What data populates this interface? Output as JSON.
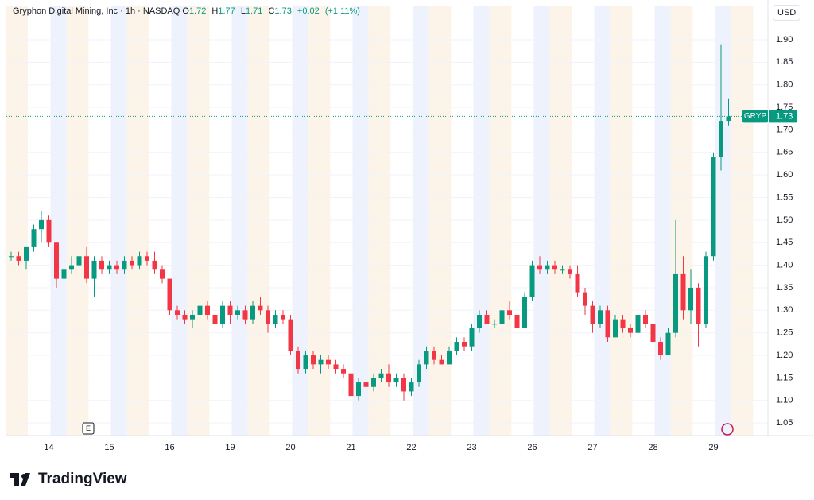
{
  "brand": "TradingView",
  "chart_data": {
    "type": "candlestick",
    "title": "Gryphon Digital Mining, Inc · 1h · NASDAQ",
    "header": {
      "open_label": "O",
      "open": 1.72,
      "high_label": "H",
      "high": 1.77,
      "low_label": "L",
      "low": 1.71,
      "close_label": "C",
      "close": 1.73,
      "change": {
        "value": 0.02,
        "label": "+0.02"
      },
      "change_pct": {
        "value": 1.11,
        "label": "(+1.11%)"
      }
    },
    "currency": "USD",
    "symbol": "GRYP",
    "last_price": 1.73,
    "earnings_marker": "E",
    "up_color": "#089981",
    "down_color": "#f23645",
    "grid": true,
    "ylim": [
      1.022,
      1.974
    ],
    "yticks": [
      1.05,
      {
        "value": 1.1,
        "label": "1.10"
      },
      1.15,
      {
        "value": 1.2,
        "label": "1.20"
      },
      1.25,
      {
        "value": 1.3,
        "label": "1.30"
      },
      1.35,
      {
        "value": 1.4,
        "label": "1.40"
      },
      1.45,
      {
        "value": 1.5,
        "label": "1.50"
      },
      1.55,
      {
        "value": 1.6,
        "label": "1.60"
      },
      1.65,
      {
        "value": 1.7,
        "label": "1.70"
      },
      1.75,
      {
        "value": 1.8,
        "label": "1.80"
      },
      1.85,
      {
        "value": 1.9,
        "label": "1.90"
      }
    ],
    "categories": [
      null,
      null,
      null,
      null,
      null,
      "14",
      null,
      null,
      null,
      null,
      null,
      null,
      null,
      "15",
      null,
      null,
      null,
      null,
      null,
      null,
      null,
      "16",
      null,
      null,
      null,
      null,
      null,
      null,
      null,
      "19",
      null,
      null,
      null,
      null,
      null,
      null,
      null,
      "20",
      null,
      null,
      null,
      null,
      null,
      null,
      null,
      "21",
      null,
      null,
      null,
      null,
      null,
      null,
      null,
      "22",
      null,
      null,
      null,
      null,
      null,
      null,
      null,
      "23",
      null,
      null,
      null,
      null,
      null,
      null,
      null,
      "26",
      null,
      null,
      null,
      null,
      null,
      null,
      null,
      "27",
      null,
      null,
      null,
      null,
      null,
      null,
      null,
      "28",
      null,
      null,
      null,
      null,
      null,
      null,
      null,
      "29",
      null,
      null
    ],
    "open": [
      1.42,
      1.42,
      1.41,
      1.44,
      1.48,
      1.5,
      1.45,
      1.37,
      1.39,
      1.4,
      1.42,
      1.37,
      1.41,
      1.39,
      1.4,
      1.39,
      1.41,
      1.4,
      1.42,
      1.41,
      1.39,
      1.37,
      1.3,
      1.29,
      1.28,
      1.29,
      1.31,
      1.29,
      1.27,
      1.31,
      1.29,
      1.3,
      1.28,
      1.31,
      1.3,
      1.27,
      1.29,
      1.28,
      1.21,
      1.17,
      1.2,
      1.18,
      1.19,
      1.18,
      1.17,
      1.16,
      1.11,
      1.14,
      1.13,
      1.15,
      1.16,
      1.14,
      1.15,
      1.12,
      1.14,
      1.18,
      1.21,
      1.19,
      1.18,
      1.21,
      1.23,
      1.22,
      1.26,
      1.29,
      1.27,
      1.27,
      1.3,
      1.29,
      1.26,
      1.33,
      1.4,
      1.39,
      1.4,
      1.39,
      1.39,
      1.38,
      1.34,
      1.31,
      1.27,
      1.3,
      1.24,
      1.28,
      1.26,
      1.25,
      1.29,
      1.27,
      1.23,
      1.2,
      1.25,
      1.38,
      1.3,
      1.35,
      1.27,
      1.42,
      1.64,
      1.72
    ],
    "high": [
      1.43,
      1.43,
      1.44,
      1.49,
      1.52,
      1.51,
      1.45,
      1.4,
      1.42,
      1.44,
      1.44,
      1.42,
      1.42,
      1.41,
      1.41,
      1.42,
      1.42,
      1.43,
      1.43,
      1.43,
      1.4,
      1.37,
      1.31,
      1.3,
      1.3,
      1.32,
      1.32,
      1.3,
      1.32,
      1.32,
      1.31,
      1.31,
      1.32,
      1.33,
      1.31,
      1.3,
      1.3,
      1.29,
      1.22,
      1.21,
      1.21,
      1.2,
      1.2,
      1.19,
      1.18,
      1.17,
      1.15,
      1.15,
      1.16,
      1.17,
      1.18,
      1.16,
      1.16,
      1.15,
      1.19,
      1.22,
      1.22,
      1.2,
      1.22,
      1.24,
      1.24,
      1.27,
      1.3,
      1.3,
      1.28,
      1.31,
      1.32,
      1.31,
      1.34,
      1.41,
      1.42,
      1.41,
      1.41,
      1.4,
      1.4,
      1.4,
      1.35,
      1.32,
      1.31,
      1.31,
      1.29,
      1.29,
      1.27,
      1.3,
      1.3,
      1.28,
      1.24,
      1.26,
      1.5,
      1.42,
      1.39,
      1.36,
      1.43,
      1.65,
      1.89,
      1.77
    ],
    "low": [
      1.41,
      1.4,
      1.39,
      1.43,
      1.45,
      1.44,
      1.35,
      1.36,
      1.38,
      1.38,
      1.36,
      1.33,
      1.38,
      1.38,
      1.38,
      1.38,
      1.39,
      1.39,
      1.4,
      1.38,
      1.36,
      1.29,
      1.28,
      1.27,
      1.26,
      1.27,
      1.28,
      1.25,
      1.26,
      1.27,
      1.28,
      1.27,
      1.27,
      1.29,
      1.25,
      1.26,
      1.27,
      1.2,
      1.16,
      1.16,
      1.17,
      1.16,
      1.17,
      1.16,
      1.15,
      1.09,
      1.1,
      1.12,
      1.12,
      1.14,
      1.13,
      1.13,
      1.1,
      1.11,
      1.13,
      1.17,
      1.18,
      1.18,
      1.18,
      1.2,
      1.21,
      1.21,
      1.25,
      1.27,
      1.26,
      1.26,
      1.28,
      1.25,
      1.26,
      1.32,
      1.38,
      1.38,
      1.38,
      1.38,
      1.37,
      1.33,
      1.29,
      1.25,
      1.26,
      1.23,
      1.24,
      1.25,
      1.24,
      1.24,
      1.26,
      1.22,
      1.19,
      1.2,
      1.24,
      1.28,
      1.27,
      1.22,
      1.26,
      1.41,
      1.61,
      1.71
    ],
    "close": [
      1.42,
      1.41,
      1.44,
      1.48,
      1.5,
      1.45,
      1.37,
      1.39,
      1.4,
      1.42,
      1.37,
      1.41,
      1.39,
      1.4,
      1.39,
      1.41,
      1.4,
      1.42,
      1.41,
      1.39,
      1.37,
      1.3,
      1.29,
      1.28,
      1.29,
      1.31,
      1.29,
      1.27,
      1.31,
      1.29,
      1.3,
      1.28,
      1.31,
      1.3,
      1.27,
      1.29,
      1.28,
      1.21,
      1.17,
      1.2,
      1.18,
      1.19,
      1.18,
      1.17,
      1.16,
      1.11,
      1.14,
      1.13,
      1.15,
      1.16,
      1.14,
      1.15,
      1.12,
      1.14,
      1.18,
      1.21,
      1.19,
      1.18,
      1.21,
      1.23,
      1.22,
      1.26,
      1.29,
      1.27,
      1.27,
      1.3,
      1.29,
      1.26,
      1.33,
      1.4,
      1.39,
      1.4,
      1.39,
      1.39,
      1.38,
      1.34,
      1.31,
      1.27,
      1.3,
      1.24,
      1.28,
      1.26,
      1.25,
      1.29,
      1.27,
      1.23,
      1.2,
      1.25,
      1.38,
      1.3,
      1.35,
      1.27,
      1.42,
      1.64,
      1.72,
      1.73
    ]
  }
}
